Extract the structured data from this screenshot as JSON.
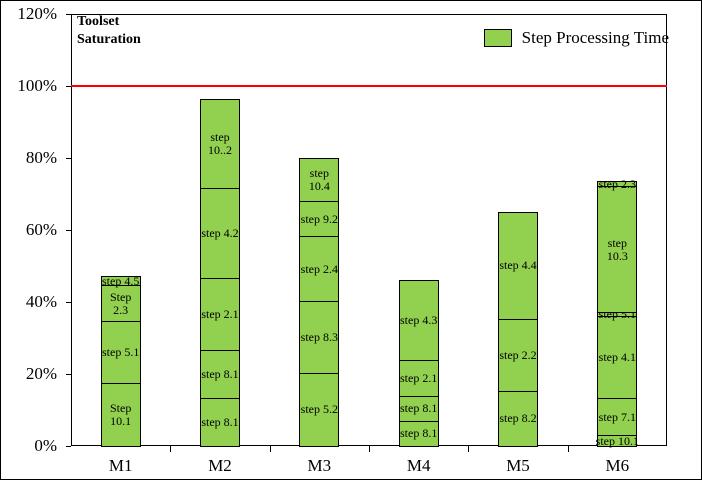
{
  "chart_data": {
    "type": "stacked-bar",
    "title": "Toolset Saturation",
    "legend": "Step Processing Time",
    "color": "#92d050",
    "threshold": 100,
    "threshold_color": "#ff0000",
    "ylim": [
      0,
      120
    ],
    "yticks": [
      {
        "value": 0,
        "label": "0%"
      },
      {
        "value": 20,
        "label": "20%"
      },
      {
        "value": 40,
        "label": "40%"
      },
      {
        "value": 60,
        "label": "60%"
      },
      {
        "value": 80,
        "label": "80%"
      },
      {
        "value": 100,
        "label": "100%"
      },
      {
        "value": 120,
        "label": "120%"
      }
    ],
    "bars": [
      {
        "label": "M1",
        "segments": [
          {
            "label": "Step 10.1",
            "value": 17.5
          },
          {
            "label": "step 5.1",
            "value": 17.2
          },
          {
            "label": "Step 2.3",
            "value": 10
          },
          {
            "label": "step 4.5",
            "value": 2.5
          }
        ]
      },
      {
        "label": "M2",
        "segments": [
          {
            "label": "step 8.1",
            "value": 13.3
          },
          {
            "label": "step 8.1",
            "value": 13.3
          },
          {
            "label": "step 2.1",
            "value": 20
          },
          {
            "label": "step 4.2",
            "value": 25
          },
          {
            "label": "step 10..2",
            "value": 24.7
          }
        ]
      },
      {
        "label": "M3",
        "segments": [
          {
            "label": "step 5.2",
            "value": 20.3
          },
          {
            "label": "step 8.3",
            "value": 20
          },
          {
            "label": "step 2.4",
            "value": 18
          },
          {
            "label": "step 9.2",
            "value": 9.7
          },
          {
            "label": "step 10.4",
            "value": 12
          }
        ]
      },
      {
        "label": "M4",
        "segments": [
          {
            "label": "step 8.1",
            "value": 7
          },
          {
            "label": "step 8.1",
            "value": 7
          },
          {
            "label": "step 2.1",
            "value": 10
          },
          {
            "label": "step 4.3",
            "value": 22
          }
        ]
      },
      {
        "label": "M5",
        "segments": [
          {
            "label": "step 8.2",
            "value": 15.3
          },
          {
            "label": "step 2.2",
            "value": 20
          },
          {
            "label": "step 4.4",
            "value": 29.7
          }
        ]
      },
      {
        "label": "M6",
        "segments": [
          {
            "label": "step 10.1",
            "value": 3
          },
          {
            "label": "step 7.1",
            "value": 10.3
          },
          {
            "label": "step 4.1",
            "value": 22.8
          },
          {
            "label": "step 5.1",
            "value": 1
          },
          {
            "label": "step 10.3",
            "value": 35
          },
          {
            "label": "step 2.3",
            "value": 1.4
          }
        ]
      }
    ]
  }
}
